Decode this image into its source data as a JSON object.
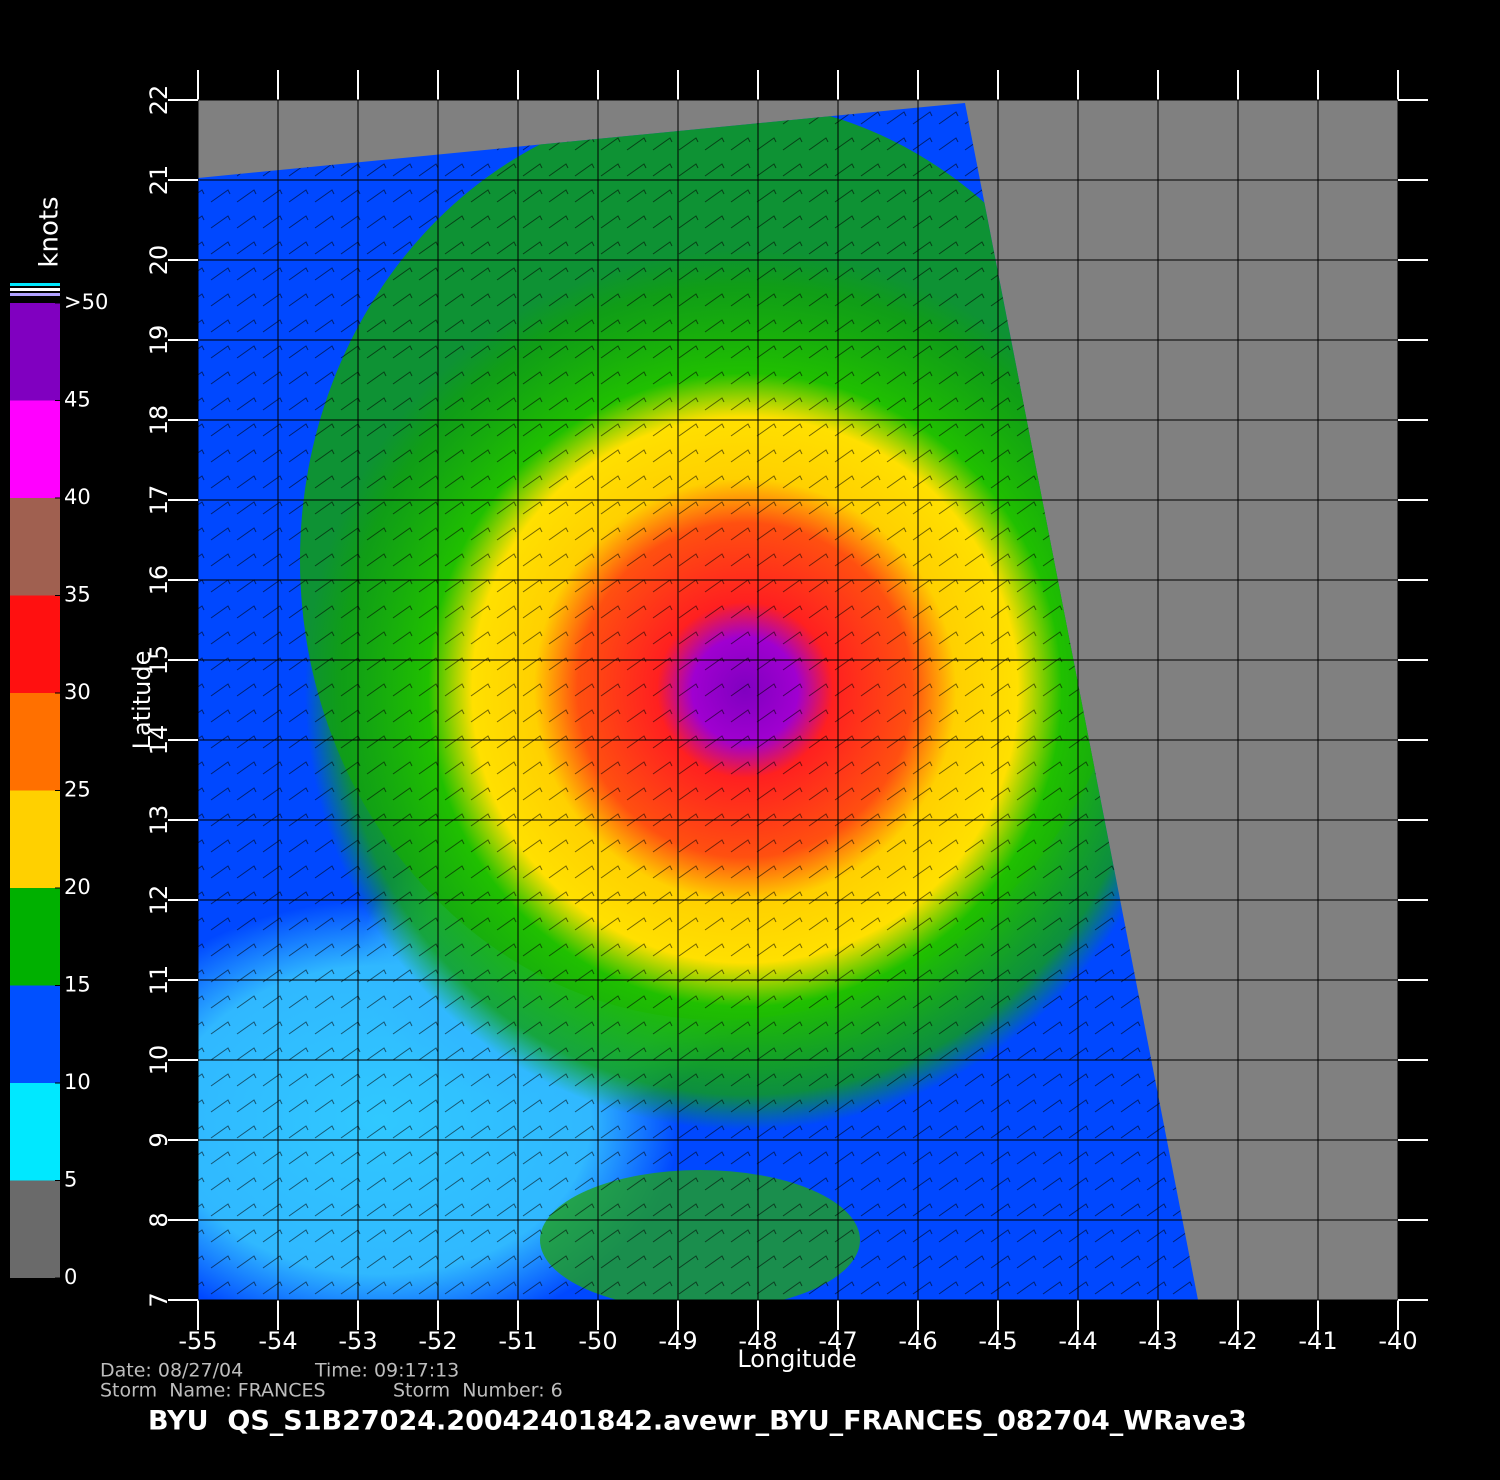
{
  "map": {
    "title": "BYU  QS_S1B27024.20042401842.avewr_BYU_FRANCES_082704_WRave3",
    "xlabel": "Longitude",
    "ylabel": "Latitude",
    "xlim": [
      -55,
      -40
    ],
    "ylim": [
      7,
      22
    ],
    "xticks": [
      -55,
      -54,
      -53,
      -52,
      -51,
      -50,
      -49,
      -48,
      -47,
      -46,
      -45,
      -44,
      -43,
      -42,
      -41,
      -40
    ],
    "yticks": [
      7,
      8,
      9,
      10,
      11,
      12,
      13,
      14,
      15,
      16,
      17,
      18,
      19,
      20,
      21,
      22
    ],
    "grid": true,
    "colorbar": {
      "label": "knots",
      "lim": [
        0,
        50
      ],
      "ticks": [
        0,
        5,
        10,
        15,
        20,
        25,
        30,
        35,
        40,
        {
          "value": 50,
          "label": ">50"
        },
        45
      ],
      "band_colors": [
        "#6a6a6a",
        "#00e8ff",
        "#0050ff",
        "#00b000",
        "#ffd000",
        "#ff7000",
        "#ff1010",
        "#a06050",
        "#ff00ff",
        "#8000c0"
      ]
    },
    "info": {
      "date": "Date: 08/27/04",
      "time": "Time: 09:17:13",
      "storm_name": "Storm  Name: FRANCES",
      "storm_number": "Storm  Number: 6"
    }
  }
}
